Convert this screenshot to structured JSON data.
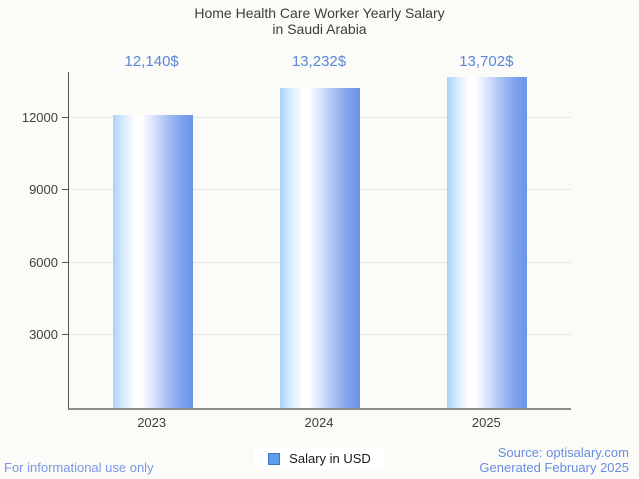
{
  "title": {
    "line1": "Home Health Care Worker Yearly Salary",
    "line2": "in Saudi Arabia"
  },
  "chart_data": {
    "type": "bar",
    "title": "Home Health Care Worker Yearly Salary in Saudi Arabia",
    "categories": [
      "2023",
      "2024",
      "2025"
    ],
    "series": [
      {
        "name": "Salary in USD",
        "values": [
          12140,
          13232,
          13702
        ]
      }
    ],
    "value_labels": [
      "12,140$",
      "13,232$",
      "13,702$"
    ],
    "xlabel": "",
    "ylabel": "",
    "ylim": [
      0,
      13900
    ],
    "yticks": [
      3000,
      6000,
      9000,
      12000
    ],
    "grid": true,
    "legend_position": "bottom",
    "colors": {
      "bar_gradient_left": "#a8d3fa",
      "bar_gradient_mid": "#ffffff",
      "bar_gradient_right": "#6b94e8",
      "annotation": "#5b86d8",
      "axis_text": "#3f3f3f",
      "gridline": "#e6e6e2",
      "background": "#fbfbf8",
      "legend_swatch": "#5e9cef"
    }
  },
  "legend": {
    "label": "Salary in USD"
  },
  "footer": {
    "disclaimer": "For informational use only",
    "source": "Source: optisalary.com",
    "generated": "Generated February 2025"
  }
}
